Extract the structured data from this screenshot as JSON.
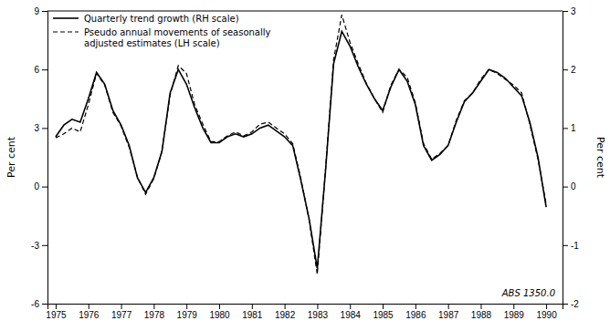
{
  "chart_data": {
    "type": "line",
    "ylabel": "Per cent",
    "y2label": "Per cent",
    "annotations": [
      "ABS 1350.0"
    ],
    "legend": "upper left",
    "grid": false,
    "xlim": [
      1974.75,
      1990.5
    ],
    "xticks": [
      1975,
      1976,
      1977,
      1978,
      1979,
      1980,
      1981,
      1982,
      1983,
      1984,
      1985,
      1986,
      1987,
      1988,
      1989,
      1990
    ],
    "ylim": [
      -6,
      9
    ],
    "yticks": [
      -6,
      -3,
      0,
      3,
      6,
      9
    ],
    "y2lim": [
      -2,
      3
    ],
    "y2ticks": [
      -2,
      -1,
      0,
      1,
      2,
      3
    ],
    "x": [
      1975.0,
      1975.25,
      1975.5,
      1975.75,
      1976.0,
      1976.25,
      1976.5,
      1976.75,
      1977.0,
      1977.25,
      1977.5,
      1977.75,
      1978.0,
      1978.25,
      1978.5,
      1978.75,
      1979.0,
      1979.25,
      1979.5,
      1979.75,
      1980.0,
      1980.25,
      1980.5,
      1980.75,
      1981.0,
      1981.25,
      1981.5,
      1981.75,
      1982.0,
      1982.25,
      1982.5,
      1982.75,
      1983.0,
      1983.25,
      1983.5,
      1983.75,
      1984.0,
      1984.25,
      1984.5,
      1984.75,
      1985.0,
      1985.25,
      1985.5,
      1985.75,
      1986.0,
      1986.25,
      1986.5,
      1986.75,
      1987.0,
      1987.25,
      1987.5,
      1987.75,
      1988.0,
      1988.25,
      1988.5,
      1988.75,
      1989.0,
      1989.25,
      1989.5,
      1989.75,
      1990.0
    ],
    "series": [
      {
        "name": "Quarterly trend growth  (RH scale)",
        "color": "#000000",
        "axis": "y2",
        "line_style": "solid",
        "values": [
          0.85,
          1.05,
          1.15,
          1.1,
          1.5,
          1.95,
          1.75,
          1.3,
          1.05,
          0.7,
          0.15,
          -0.1,
          0.15,
          0.6,
          1.6,
          2.0,
          1.75,
          1.35,
          1.0,
          0.75,
          0.75,
          0.85,
          0.9,
          0.85,
          0.9,
          1.0,
          1.05,
          0.95,
          0.85,
          0.7,
          0.1,
          -0.55,
          -1.4,
          0.25,
          2.1,
          2.65,
          2.4,
          2.05,
          1.75,
          1.5,
          1.3,
          1.7,
          2.0,
          1.8,
          1.4,
          0.7,
          0.45,
          0.55,
          0.7,
          1.1,
          1.45,
          1.6,
          1.8,
          2.0,
          1.95,
          1.85,
          1.7,
          1.55,
          1.1,
          0.5,
          -0.35
        ]
      },
      {
        "name": "Pseudo annual movements of seasonally\nadjusted estimates  (LH scale)",
        "color": "#000000",
        "axis": "y",
        "line_style": "dashed",
        "values": [
          2.5,
          2.7,
          3.0,
          2.8,
          4.2,
          5.8,
          5.2,
          3.8,
          3.1,
          2.0,
          0.5,
          -0.4,
          0.4,
          1.8,
          4.7,
          6.2,
          5.8,
          4.2,
          3.2,
          2.3,
          2.3,
          2.6,
          2.8,
          2.6,
          2.8,
          3.2,
          3.3,
          3.0,
          2.7,
          2.2,
          0.4,
          -1.7,
          -4.5,
          0.8,
          6.5,
          8.8,
          7.4,
          6.3,
          5.3,
          4.5,
          3.8,
          5.2,
          6.0,
          5.6,
          4.3,
          2.2,
          1.4,
          1.7,
          2.1,
          3.4,
          4.4,
          4.8,
          5.5,
          6.0,
          5.8,
          5.5,
          5.2,
          4.8,
          3.2,
          1.4,
          -0.9
        ]
      }
    ]
  }
}
